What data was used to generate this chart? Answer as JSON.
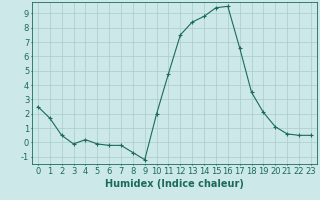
{
  "x": [
    0,
    1,
    2,
    3,
    4,
    5,
    6,
    7,
    8,
    9,
    10,
    11,
    12,
    13,
    14,
    15,
    16,
    17,
    18,
    19,
    20,
    21,
    22,
    23
  ],
  "y": [
    2.5,
    1.7,
    0.5,
    -0.1,
    0.2,
    -0.1,
    -0.2,
    -0.2,
    -0.7,
    -1.2,
    2.0,
    4.8,
    7.5,
    8.4,
    8.8,
    9.4,
    9.5,
    6.6,
    3.5,
    2.1,
    1.1,
    0.6,
    0.5,
    0.5
  ],
  "line_color": "#1a6b5a",
  "marker": "+",
  "marker_size": 3,
  "bg_color": "#cde8e8",
  "grid_color": "#aacccc",
  "xlabel": "Humidex (Indice chaleur)",
  "xlabel_fontsize": 7,
  "xlim": [
    -0.5,
    23.5
  ],
  "ylim": [
    -1.5,
    9.8
  ],
  "yticks": [
    -1,
    0,
    1,
    2,
    3,
    4,
    5,
    6,
    7,
    8,
    9
  ],
  "xticks": [
    0,
    1,
    2,
    3,
    4,
    5,
    6,
    7,
    8,
    9,
    10,
    11,
    12,
    13,
    14,
    15,
    16,
    17,
    18,
    19,
    20,
    21,
    22,
    23
  ],
  "tick_fontsize": 6
}
